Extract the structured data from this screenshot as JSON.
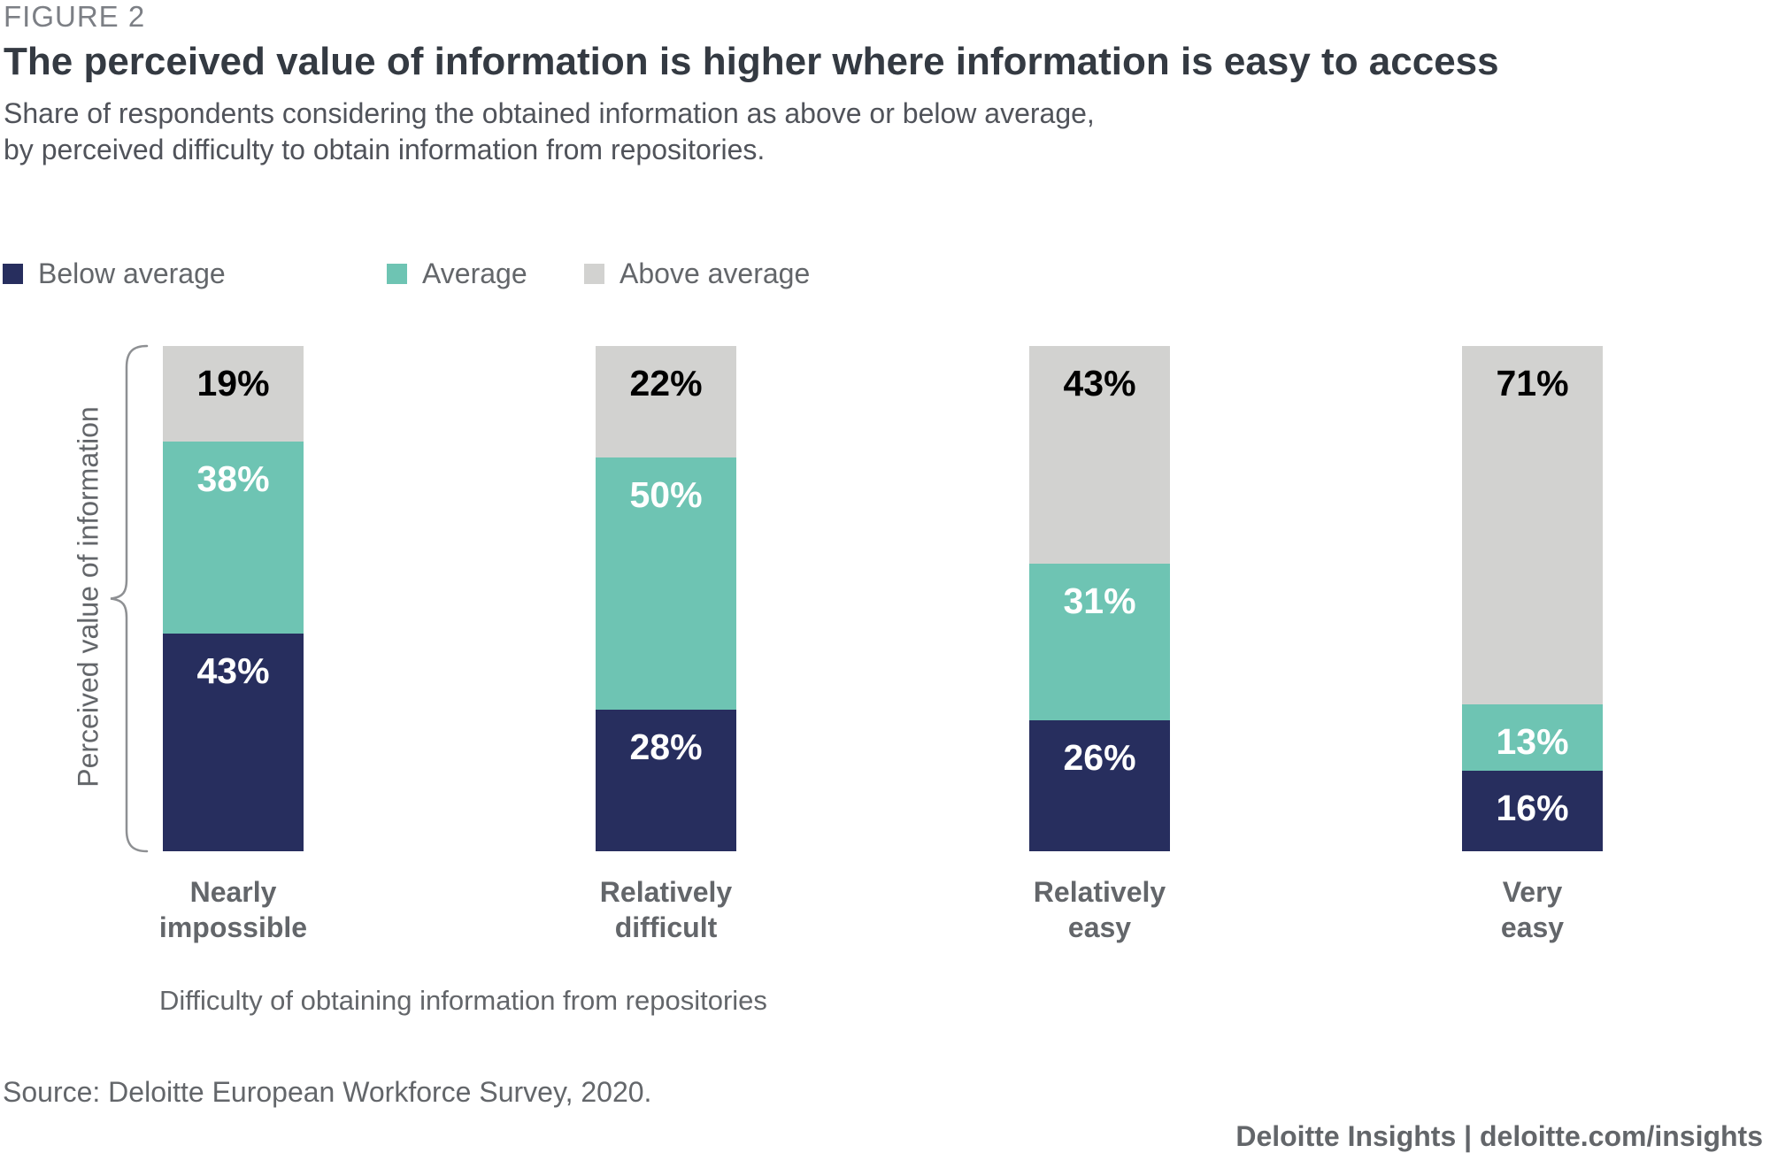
{
  "figure_label": "FIGURE 2",
  "title": "The perceived value of information is higher where information is easy to access",
  "subtitle_line1": "Share of respondents considering the obtained information as above or below average,",
  "subtitle_line2": "by perceived difficulty to obtain information from repositories.",
  "legend": [
    {
      "label": "Below average",
      "color": "#272e5e"
    },
    {
      "label": "Average",
      "color": "#6ec4b3"
    },
    {
      "label": "Above average",
      "color": "#d2d2d0"
    }
  ],
  "chart_data": {
    "type": "bar",
    "stacked": true,
    "unit": "%",
    "categories": [
      "Nearly impossible",
      "Relatively difficult",
      "Relatively easy",
      "Very easy"
    ],
    "series": [
      {
        "name": "Below average",
        "color": "#272e5e",
        "label_color": "#ffffff",
        "values": [
          43,
          28,
          26,
          16
        ]
      },
      {
        "name": "Average",
        "color": "#6ec4b3",
        "label_color": "#ffffff",
        "values": [
          38,
          50,
          31,
          13
        ]
      },
      {
        "name": "Above average",
        "color": "#d2d2d0",
        "label_color": "#000000",
        "values": [
          19,
          22,
          43,
          71
        ]
      }
    ],
    "ylabel": "Perceived value of information",
    "xlabel": "Difficulty of obtaining information from repositories",
    "ylim": [
      0,
      100
    ],
    "grid": false,
    "legend_position": "top",
    "data_label_format": "{value}%"
  },
  "source": "Source: Deloitte European Workforce Survey, 2020.",
  "footer": "Deloitte Insights | deloitte.com/insights"
}
